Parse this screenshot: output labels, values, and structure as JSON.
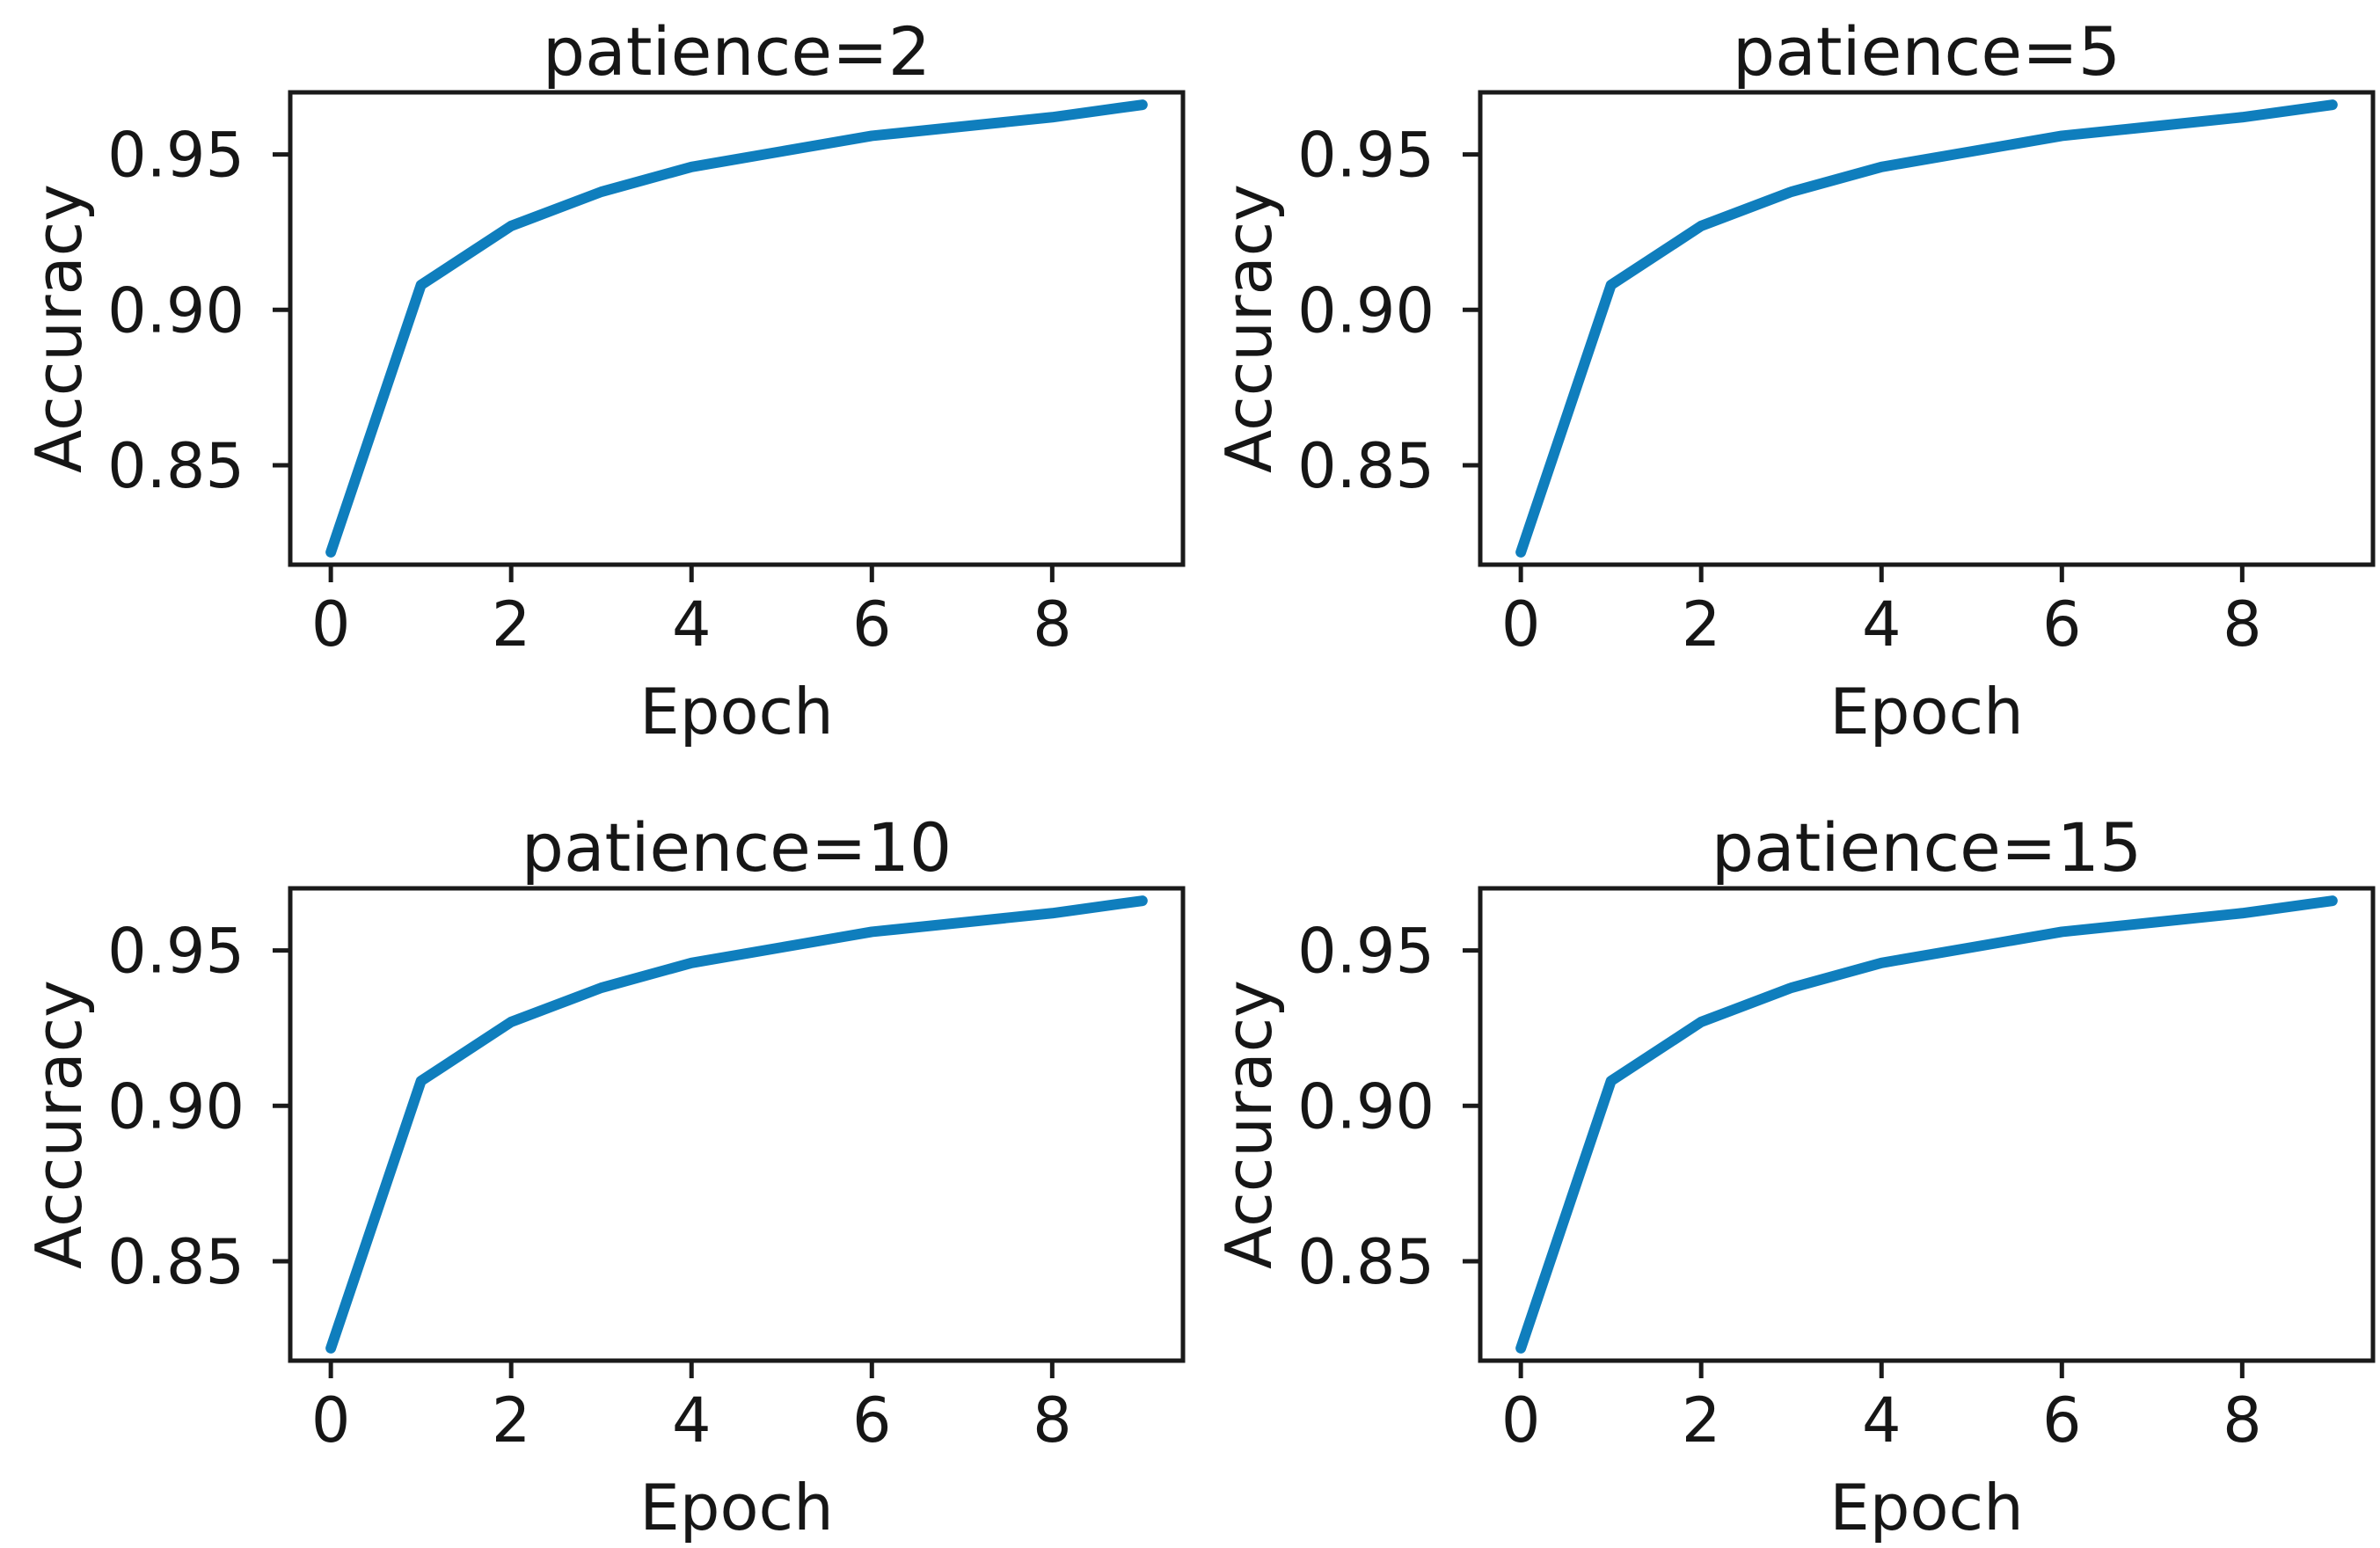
{
  "figure": {
    "background": "#ffffff",
    "text_color": "#161616",
    "spine_color": "#1a1a1a",
    "line_color": "#0f7ebd"
  },
  "chart_data": [
    {
      "type": "line",
      "title": "patience=2",
      "xlabel": "Epoch",
      "ylabel": "Accuracy",
      "x": [
        0,
        1,
        2,
        3,
        4,
        5,
        6,
        7,
        8,
        9
      ],
      "values": [
        0.822,
        0.908,
        0.927,
        0.938,
        0.946,
        0.951,
        0.956,
        0.959,
        0.962,
        0.966
      ],
      "xticks": [
        0,
        2,
        4,
        6,
        8
      ],
      "xtick_labels": [
        "0",
        "2",
        "4",
        "6",
        "8"
      ],
      "yticks": [
        0.85,
        0.9,
        0.95
      ],
      "ytick_labels": [
        "0.85",
        "0.90",
        "0.95"
      ],
      "xlim": [
        -0.45,
        9.45
      ],
      "ylim": [
        0.818,
        0.97
      ],
      "grid": false,
      "legend": null
    },
    {
      "type": "line",
      "title": "patience=5",
      "xlabel": "Epoch",
      "ylabel": "Accuracy",
      "x": [
        0,
        1,
        2,
        3,
        4,
        5,
        6,
        7,
        8,
        9
      ],
      "values": [
        0.822,
        0.908,
        0.927,
        0.938,
        0.946,
        0.951,
        0.956,
        0.959,
        0.962,
        0.966
      ],
      "xticks": [
        0,
        2,
        4,
        6,
        8
      ],
      "xtick_labels": [
        "0",
        "2",
        "4",
        "6",
        "8"
      ],
      "yticks": [
        0.85,
        0.9,
        0.95
      ],
      "ytick_labels": [
        "0.85",
        "0.90",
        "0.95"
      ],
      "xlim": [
        -0.45,
        9.45
      ],
      "ylim": [
        0.818,
        0.97
      ],
      "grid": false,
      "legend": null
    },
    {
      "type": "line",
      "title": "patience=10",
      "xlabel": "Epoch",
      "ylabel": "Accuracy",
      "x": [
        0,
        1,
        2,
        3,
        4,
        5,
        6,
        7,
        8,
        9
      ],
      "values": [
        0.822,
        0.908,
        0.927,
        0.938,
        0.946,
        0.951,
        0.956,
        0.959,
        0.962,
        0.966
      ],
      "xticks": [
        0,
        2,
        4,
        6,
        8
      ],
      "xtick_labels": [
        "0",
        "2",
        "4",
        "6",
        "8"
      ],
      "yticks": [
        0.85,
        0.9,
        0.95
      ],
      "ytick_labels": [
        "0.85",
        "0.90",
        "0.95"
      ],
      "xlim": [
        -0.45,
        9.45
      ],
      "ylim": [
        0.818,
        0.97
      ],
      "grid": false,
      "legend": null
    },
    {
      "type": "line",
      "title": "patience=15",
      "xlabel": "Epoch",
      "ylabel": "Accuracy",
      "x": [
        0,
        1,
        2,
        3,
        4,
        5,
        6,
        7,
        8,
        9
      ],
      "values": [
        0.822,
        0.908,
        0.927,
        0.938,
        0.946,
        0.951,
        0.956,
        0.959,
        0.962,
        0.966
      ],
      "xticks": [
        0,
        2,
        4,
        6,
        8
      ],
      "xtick_labels": [
        "0",
        "2",
        "4",
        "6",
        "8"
      ],
      "yticks": [
        0.85,
        0.9,
        0.95
      ],
      "ytick_labels": [
        "0.85",
        "0.90",
        "0.95"
      ],
      "xlim": [
        -0.45,
        9.45
      ],
      "ylim": [
        0.818,
        0.97
      ],
      "grid": false,
      "legend": null
    }
  ]
}
